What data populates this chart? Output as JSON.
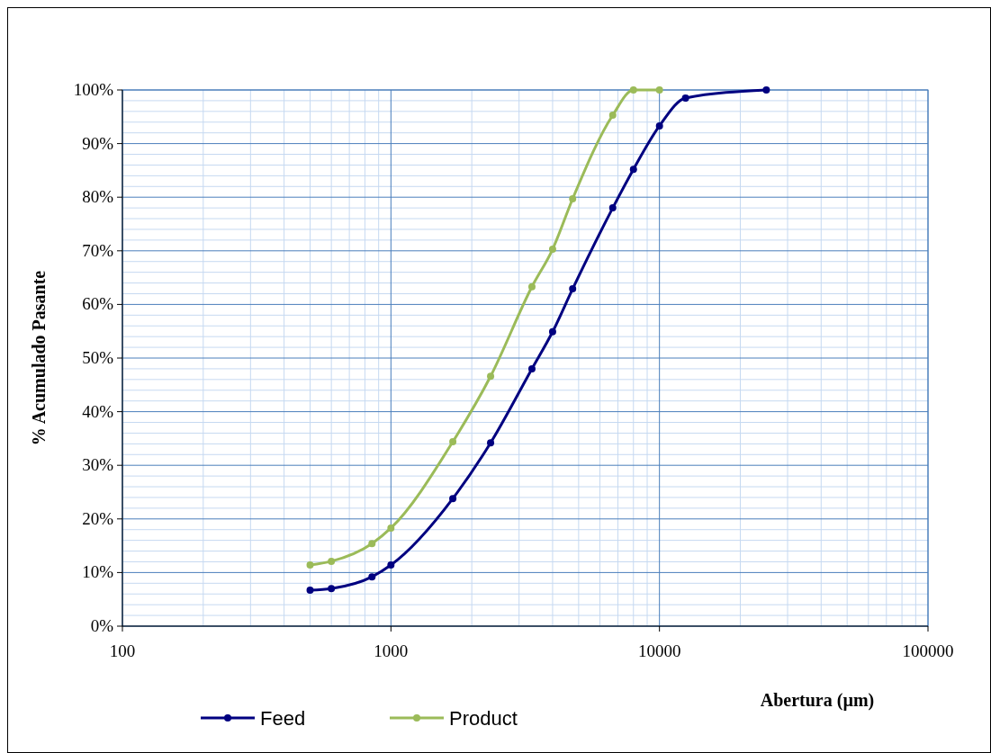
{
  "chart_data": {
    "type": "line",
    "xlabel": "Abertura (µm)",
    "ylabel": "% Acumulado Pasante",
    "log": "x",
    "xlim": [
      100,
      100000
    ],
    "xticks": [
      100,
      {
        "value": 200,
        "label": null
      },
      {
        "value": 300,
        "label": null
      },
      {
        "value": 400,
        "label": null
      },
      {
        "value": 500,
        "label": null
      },
      {
        "value": 600,
        "label": null
      },
      {
        "value": 700,
        "label": null
      },
      {
        "value": 800,
        "label": null
      },
      {
        "value": 900,
        "label": null
      },
      1000,
      {
        "value": 2000,
        "label": null
      },
      {
        "value": 3000,
        "label": null
      },
      {
        "value": 4000,
        "label": null
      },
      {
        "value": 5000,
        "label": null
      },
      {
        "value": 6000,
        "label": null
      },
      {
        "value": 7000,
        "label": null
      },
      {
        "value": 8000,
        "label": null
      },
      {
        "value": 9000,
        "label": null
      },
      10000,
      {
        "value": 20000,
        "label": null
      },
      {
        "value": 30000,
        "label": null
      },
      {
        "value": 40000,
        "label": null
      },
      {
        "value": 50000,
        "label": null
      },
      {
        "value": 60000,
        "label": null
      },
      {
        "value": 70000,
        "label": null
      },
      {
        "value": 80000,
        "label": null
      },
      {
        "value": 90000,
        "label": null
      },
      100000
    ],
    "ylim": [
      0,
      100
    ],
    "yticks": [
      {
        "value": 0,
        "label": "0%"
      },
      {
        "value": 2,
        "label": null
      },
      {
        "value": 4,
        "label": null
      },
      {
        "value": 6,
        "label": null
      },
      {
        "value": 8,
        "label": null
      },
      {
        "value": 10,
        "label": "10%"
      },
      {
        "value": 12,
        "label": null
      },
      {
        "value": 14,
        "label": null
      },
      {
        "value": 16,
        "label": null
      },
      {
        "value": 18,
        "label": null
      },
      {
        "value": 20,
        "label": "20%"
      },
      {
        "value": 22,
        "label": null
      },
      {
        "value": 24,
        "label": null
      },
      {
        "value": 26,
        "label": null
      },
      {
        "value": 28,
        "label": null
      },
      {
        "value": 30,
        "label": "30%"
      },
      {
        "value": 32,
        "label": null
      },
      {
        "value": 34,
        "label": null
      },
      {
        "value": 36,
        "label": null
      },
      {
        "value": 38,
        "label": null
      },
      {
        "value": 40,
        "label": "40%"
      },
      {
        "value": 42,
        "label": null
      },
      {
        "value": 44,
        "label": null
      },
      {
        "value": 46,
        "label": null
      },
      {
        "value": 48,
        "label": null
      },
      {
        "value": 50,
        "label": "50%"
      },
      {
        "value": 52,
        "label": null
      },
      {
        "value": 54,
        "label": null
      },
      {
        "value": 56,
        "label": null
      },
      {
        "value": 58,
        "label": null
      },
      {
        "value": 60,
        "label": "60%"
      },
      {
        "value": 62,
        "label": null
      },
      {
        "value": 64,
        "label": null
      },
      {
        "value": 66,
        "label": null
      },
      {
        "value": 68,
        "label": null
      },
      {
        "value": 70,
        "label": "70%"
      },
      {
        "value": 72,
        "label": null
      },
      {
        "value": 74,
        "label": null
      },
      {
        "value": 76,
        "label": null
      },
      {
        "value": 78,
        "label": null
      },
      {
        "value": 80,
        "label": "80%"
      },
      {
        "value": 82,
        "label": null
      },
      {
        "value": 84,
        "label": null
      },
      {
        "value": 86,
        "label": null
      },
      {
        "value": 88,
        "label": null
      },
      {
        "value": 90,
        "label": "90%"
      },
      {
        "value": 92,
        "label": null
      },
      {
        "value": 94,
        "label": null
      },
      {
        "value": 96,
        "label": null
      },
      {
        "value": 98,
        "label": null
      },
      {
        "value": 100,
        "label": "100%"
      }
    ],
    "grid": true,
    "legend": "bottom",
    "marker": "circle",
    "series": [
      {
        "name": "Feed",
        "color": "#000080",
        "x": [
          500,
          600,
          850,
          1000,
          1700,
          2350,
          3350,
          4000,
          4750,
          6700,
          8000,
          10000,
          12500,
          25000
        ],
        "values": [
          6.7,
          7.0,
          9.2,
          11.4,
          23.8,
          34.2,
          48.0,
          54.9,
          62.9,
          78.0,
          85.2,
          93.3,
          98.5,
          100
        ]
      },
      {
        "name": "Product",
        "color": "#9bbb59",
        "x": [
          500,
          600,
          850,
          1000,
          1700,
          2350,
          3350,
          4000,
          4750,
          6700,
          8000,
          10000
        ],
        "values": [
          11.4,
          12.1,
          15.4,
          18.3,
          34.4,
          46.6,
          63.3,
          70.3,
          79.7,
          95.3,
          100,
          100
        ]
      }
    ]
  }
}
